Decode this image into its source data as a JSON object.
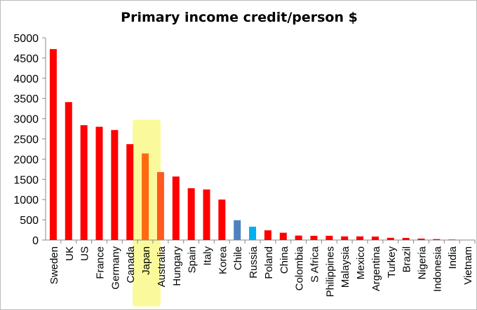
{
  "chart_data": {
    "type": "bar",
    "title": "Primary income credit/person $",
    "xlabel": "",
    "ylabel": "",
    "ylim": [
      0,
      5000
    ],
    "yticks": [
      0,
      500,
      1000,
      1500,
      2000,
      2500,
      3000,
      3500,
      4000,
      4500,
      5000
    ],
    "categories": [
      "Sweden",
      "UK",
      "US",
      "France",
      "Germany",
      "Canada",
      "Japan",
      "Australia",
      "Hungary",
      "Spain",
      "Italy",
      "Korea",
      "Chile",
      "Russia",
      "Poland",
      "China",
      "Colombia",
      "S Africa",
      "Philippines",
      "Malaysia",
      "Mexico",
      "Argentina",
      "Turkey",
      "Brazil",
      "Nigeria",
      "Indonesia",
      "India",
      "Vietnam"
    ],
    "values": [
      4720,
      3410,
      2840,
      2800,
      2720,
      2370,
      2140,
      1680,
      1570,
      1280,
      1250,
      1000,
      490,
      330,
      240,
      180,
      110,
      105,
      105,
      90,
      90,
      85,
      55,
      52,
      35,
      23,
      12,
      0
    ],
    "colors": {
      "default": "#ff0000",
      "Japan": "#ff6a10",
      "Australia": "#ff5a20",
      "Chile": "#4f81bd",
      "Russia": "#00b0f0"
    },
    "highlight": {
      "category": "Japan",
      "color": "#fafa9c"
    },
    "grid": false,
    "legend": "none"
  }
}
